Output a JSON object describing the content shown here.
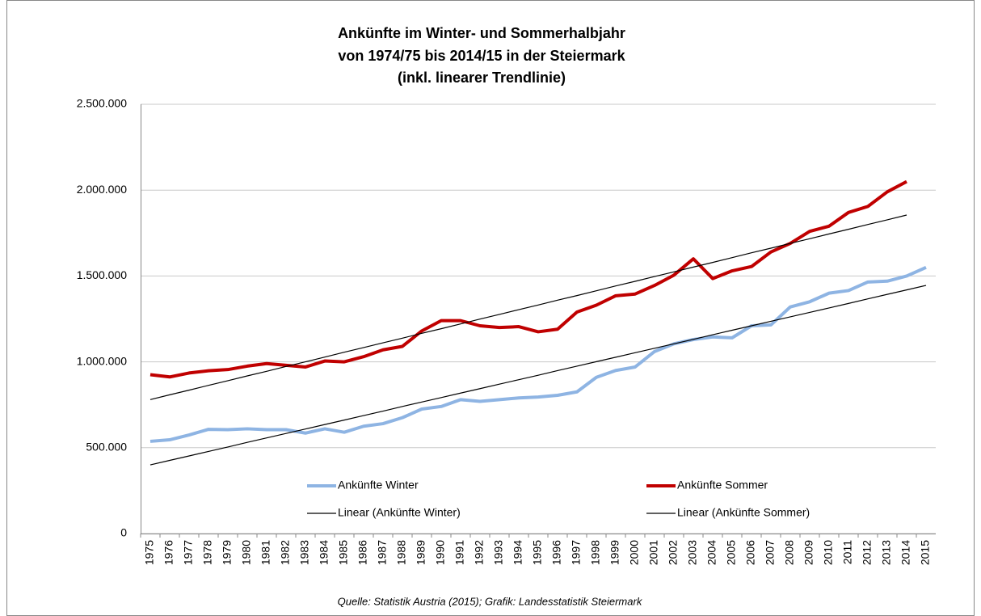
{
  "chart_data": {
    "type": "line",
    "title": [
      "Ankünfte im Winter- und Sommerhalbjahr",
      "von 1974/75 bis 2014/15 in der Steiermark",
      "(inkl. linearer Trendlinie)"
    ],
    "source": "Quelle: Statistik Austria (2015); Grafik: Landesstatistik Steiermark",
    "categories": [
      "1975",
      "1976",
      "1977",
      "1978",
      "1979",
      "1980",
      "1981",
      "1982",
      "1983",
      "1984",
      "1985",
      "1986",
      "1987",
      "1988",
      "1989",
      "1990",
      "1991",
      "1992",
      "1993",
      "1994",
      "1995",
      "1996",
      "1997",
      "1998",
      "1999",
      "2000",
      "2001",
      "2002",
      "2003",
      "2004",
      "2005",
      "2006",
      "2007",
      "2008",
      "2009",
      "2010",
      "2011",
      "2012",
      "2013",
      "2014",
      "2015"
    ],
    "series": [
      {
        "name": "Ankünfte Winter",
        "color": "#8eb4e3",
        "width": 4,
        "values": [
          537000,
          546000,
          574000,
          607000,
          605000,
          610000,
          605000,
          605000,
          585000,
          610000,
          590000,
          625000,
          640000,
          675000,
          725000,
          740000,
          780000,
          770000,
          780000,
          790000,
          795000,
          805000,
          825000,
          910000,
          950000,
          970000,
          1060000,
          1105000,
          1130000,
          1145000,
          1140000,
          1210000,
          1215000,
          1320000,
          1350000,
          1400000,
          1415000,
          1465000,
          1470000,
          1500000,
          1550000
        ]
      },
      {
        "name": "Ankünfte Sommer",
        "color": "#c00000",
        "width": 4,
        "values": [
          925000,
          912000,
          935000,
          948000,
          955000,
          975000,
          990000,
          980000,
          970000,
          1005000,
          1000000,
          1030000,
          1070000,
          1090000,
          1180000,
          1240000,
          1240000,
          1210000,
          1200000,
          1205000,
          1175000,
          1190000,
          1290000,
          1330000,
          1385000,
          1395000,
          1445000,
          1505000,
          1600000,
          1485000,
          1530000,
          1555000,
          1640000,
          1690000,
          1760000,
          1790000,
          1870000,
          1905000,
          1990000,
          2050000,
          null
        ]
      },
      {
        "name": "Linear (Ankünfte Winter)",
        "color": "#000000",
        "width": 1.2,
        "values": [
          400000,
          426000,
          452000,
          478000,
          504000,
          531000,
          557000,
          583000,
          609000,
          635000,
          661000,
          687000,
          713000,
          740000,
          766000,
          792000,
          818000,
          844000,
          870000,
          896000,
          922000,
          949000,
          975000,
          1001000,
          1027000,
          1053000,
          1079000,
          1105000,
          1131000,
          1158000,
          1184000,
          1210000,
          1236000,
          1262000,
          1288000,
          1314000,
          1340000,
          1367000,
          1393000,
          1419000,
          1445000
        ]
      },
      {
        "name": "Linear (Ankünfte Sommer)",
        "color": "#000000",
        "width": 1.2,
        "values": [
          780000,
          808000,
          835000,
          863000,
          890000,
          918000,
          945000,
          973000,
          1000000,
          1028000,
          1056000,
          1083000,
          1111000,
          1138000,
          1166000,
          1193000,
          1221000,
          1249000,
          1276000,
          1304000,
          1331000,
          1359000,
          1386000,
          1414000,
          1442000,
          1469000,
          1497000,
          1524000,
          1552000,
          1579000,
          1607000,
          1635000,
          1662000,
          1690000,
          1717000,
          1745000,
          1772000,
          1800000,
          1827000,
          1855000,
          null
        ]
      }
    ],
    "ylim": [
      0,
      2500000
    ],
    "yticks": [
      0,
      {
        "value": 500000,
        "label": "500.000"
      },
      {
        "value": 1000000,
        "label": "1.000.000"
      },
      {
        "value": 1500000,
        "label": "1.500.000"
      },
      {
        "value": 2000000,
        "label": "2.000.000"
      },
      {
        "value": 2500000,
        "label": "2.500.000"
      }
    ],
    "grid": true
  }
}
